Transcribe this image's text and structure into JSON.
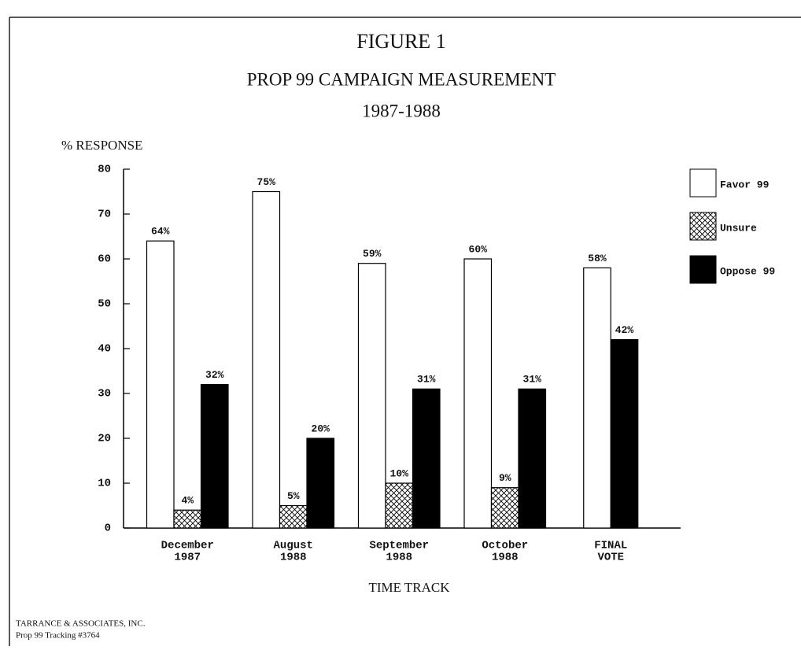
{
  "chart_data": {
    "type": "bar",
    "title": "FIGURE 1",
    "subtitle": [
      "PROP 99 CAMPAIGN MEASUREMENT",
      "1987-1988"
    ],
    "ylabel": "% RESPONSE",
    "xlabel": "TIME TRACK",
    "source": [
      "TARRANCE & ASSOCIATES, INC.",
      "Prop 99 Tracking #3764"
    ],
    "categories": [
      [
        "December",
        "1987"
      ],
      [
        "August",
        "1988"
      ],
      [
        "September",
        "1988"
      ],
      [
        "October",
        "1988"
      ],
      [
        "FINAL",
        "VOTE"
      ]
    ],
    "series": [
      {
        "name": "Favor 99",
        "color": "#ffffff",
        "values": [
          64,
          75,
          59,
          60,
          58
        ],
        "value_labels": [
          "64%",
          "75%",
          "59%",
          "60%",
          "58%"
        ]
      },
      {
        "name": "Unsure",
        "color": "#ffffff",
        "pattern": "crosshatch",
        "values": [
          4,
          5,
          10,
          9,
          null
        ],
        "value_labels": [
          "4%",
          "5%",
          "10%",
          "9%",
          null
        ]
      },
      {
        "name": "Oppose 99",
        "color": "#000000",
        "values": [
          32,
          20,
          31,
          31,
          42
        ],
        "value_labels": [
          "32%",
          "20%",
          "31%",
          "31%",
          "42%"
        ]
      }
    ],
    "ylim": [
      0,
      80
    ],
    "yticks": [
      0,
      10,
      20,
      30,
      40,
      50,
      60,
      70,
      80
    ],
    "grid": false,
    "legend": "right"
  }
}
